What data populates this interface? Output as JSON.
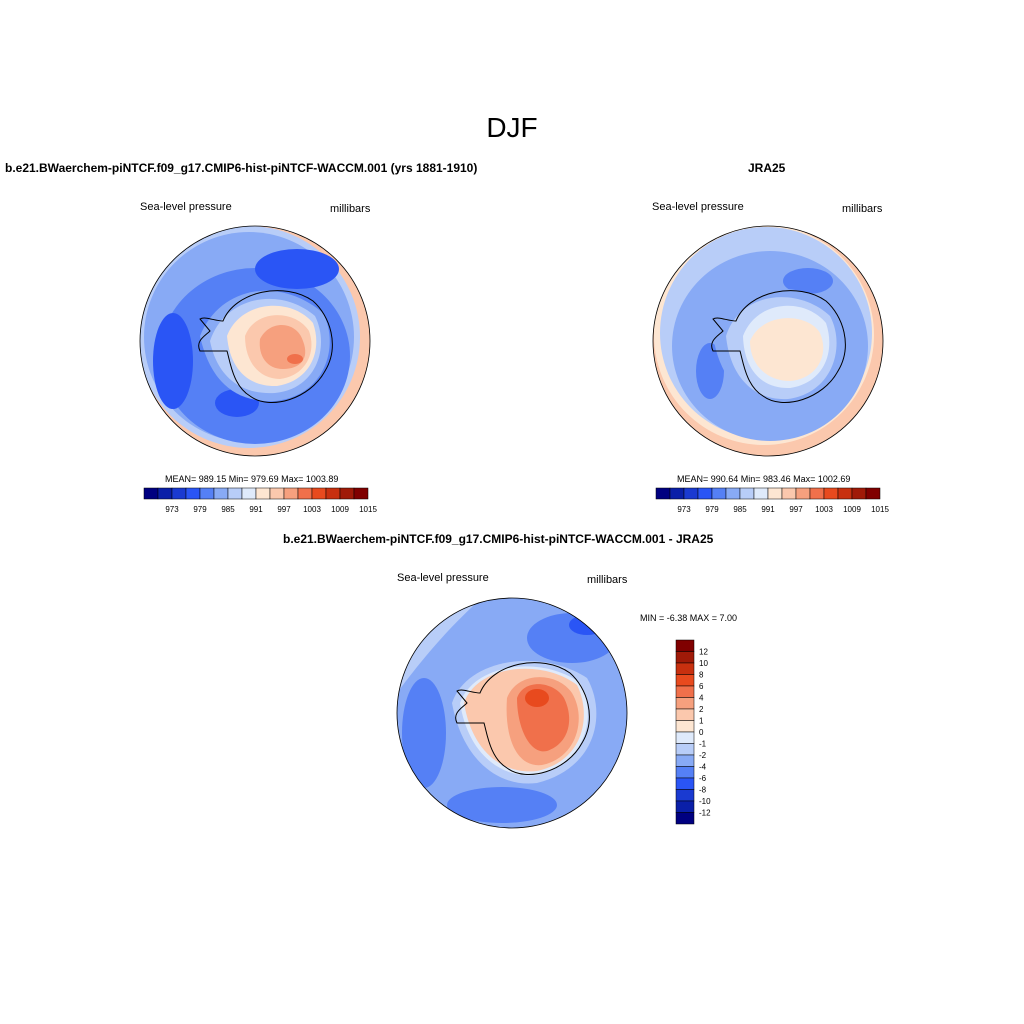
{
  "figure": {
    "season_title": "DJF",
    "panels": [
      {
        "title": "b.e21.BWaerchem-piNTCF.f09_g17.CMIP6-hist-piNTCF-WACCM.001 (yrs 1881-1910)",
        "variable": "Sea-level pressure",
        "units": "millibars",
        "stats": "MEAN= 989.15  Min= 979.69  Max= 1003.89"
      },
      {
        "title": "JRA25",
        "variable": "Sea-level pressure",
        "units": "millibars",
        "stats": "MEAN= 990.64  Min= 983.46  Max= 1002.69"
      },
      {
        "title": "b.e21.BWaerchem-piNTCF.f09_g17.CMIP6-hist-piNTCF-WACCM.001 - JRA25",
        "variable": "Sea-level pressure",
        "units": "millibars",
        "stats": "MIN =  -6.38 MAX =   7.00"
      }
    ]
  },
  "colorbars": {
    "abs_labels": [
      "973",
      "979",
      "985",
      "991",
      "997",
      "1003",
      "1009",
      "1015"
    ],
    "abs_colors": [
      "#000080",
      "#0a1fa8",
      "#1a3ad1",
      "#2a55f5",
      "#5580f5",
      "#88aaf5",
      "#b8cdf8",
      "#dfeafb",
      "#fde6d2",
      "#fbc8ad",
      "#f6a07e",
      "#f0704b",
      "#e84a1e",
      "#c8300f",
      "#a01a08",
      "#800000"
    ],
    "diff_labels": [
      "12",
      "10",
      "8",
      "6",
      "4",
      "2",
      "1",
      "0",
      "-1",
      "-2",
      "-4",
      "-6",
      "-8",
      "-10",
      "-12"
    ],
    "diff_colors": [
      "#800000",
      "#a01a08",
      "#c8300f",
      "#e84a1e",
      "#f0704b",
      "#f6a07e",
      "#fbc8ad",
      "#fde6d2",
      "#dfeafb",
      "#b8cdf8",
      "#88aaf5",
      "#5580f5",
      "#2a55f5",
      "#1a3ad1",
      "#0a1fa8",
      "#000080"
    ]
  }
}
